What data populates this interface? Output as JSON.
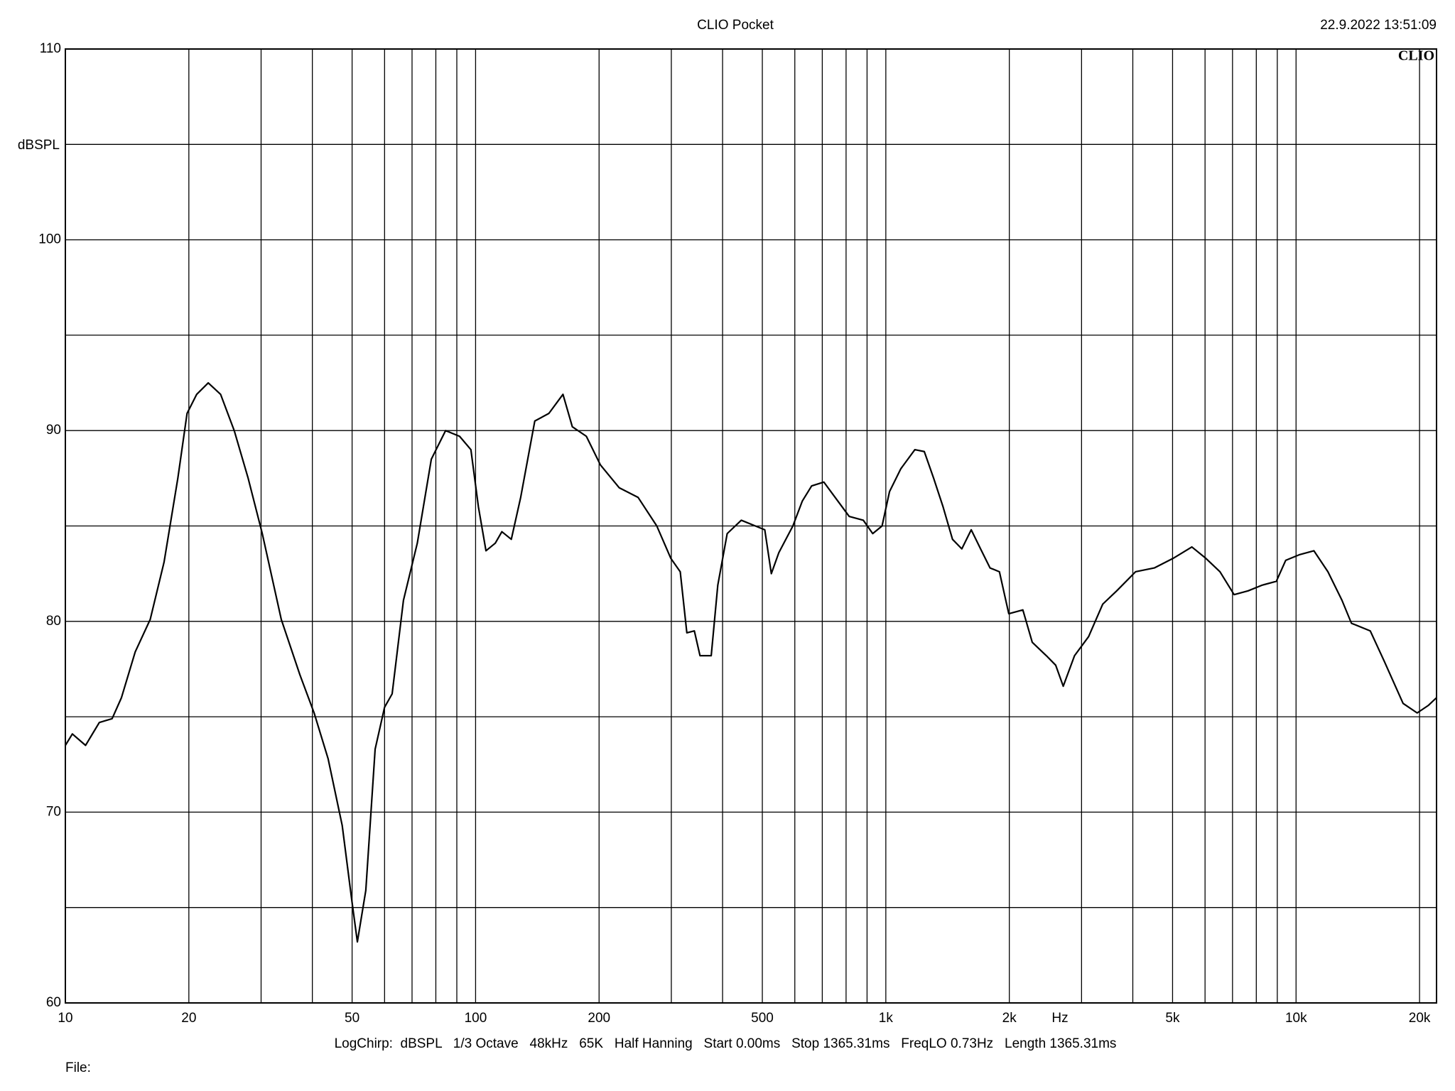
{
  "chart_data": {
    "type": "line",
    "title": "CLIO Pocket",
    "timestamp": "22.9.2022 13:51:09",
    "logo": "CLIO",
    "y_label": "dBSPL",
    "x_label": "Hz",
    "footer": "LogChirp:  dBSPL   1/3 Octave   48kHz   65K   Half Hanning   Start 0.00ms   Stop 1365.31ms   FreqLO 0.73Hz   Length 1365.31ms",
    "file_label": "File:",
    "x_scale": "log",
    "grid": true,
    "color": "#000000",
    "xlim": [
      10,
      22000
    ],
    "ylim": [
      60,
      110
    ],
    "xticks": [
      10,
      20,
      50,
      100,
      200,
      500,
      {
        "value": 1000,
        "label": "1k"
      },
      {
        "value": 2000,
        "label": "2k"
      },
      {
        "value": 5000,
        "label": "5k"
      },
      {
        "value": 10000,
        "label": "10k"
      },
      {
        "value": 20000,
        "label": "20k"
      }
    ],
    "xminor_ticks": [
      30,
      40,
      60,
      70,
      80,
      90,
      300,
      400,
      600,
      700,
      800,
      900,
      3000,
      4000,
      6000,
      7000,
      8000,
      9000
    ],
    "yticks": [
      60,
      70,
      80,
      90,
      100,
      110
    ],
    "yminor_ticks": [
      65,
      75,
      85,
      95,
      105
    ],
    "x": [
      10,
      10.4,
      11.2,
      12.1,
      13.0,
      13.7,
      14.8,
      16.1,
      17.4,
      18.8,
      19.8,
      20.9,
      22.3,
      23.9,
      25.8,
      27.9,
      30.2,
      33.6,
      37.3,
      40.4,
      43.7,
      47.3,
      49.9,
      51.5,
      54.0,
      56.9,
      60.0,
      62.6,
      66.7,
      72.1,
      78.0,
      84.5,
      91.4,
      97.4,
      101.6,
      106,
      111.7,
      115.9,
      122.2,
      128.8,
      139.4,
      150.9,
      163.3,
      172.1,
      186.2,
      201.5,
      224,
      248.9,
      276.5,
      299.2,
      315.4,
      327.3,
      341.4,
      352.4,
      375.3,
      389.4,
      410.5,
      444.3,
      480.8,
      506.9,
      525.9,
      548.5,
      593.5,
      625.6,
      659.5,
      706.3,
      752.2,
      814.2,
      881.3,
      929.1,
      979.1,
      1021,
      1088,
      1177,
      1241,
      1308,
      1379,
      1454,
      1532,
      1615,
      1702,
      1795,
      1892,
      1994,
      2158,
      2275,
      2462,
      2595,
      2707,
      2884,
      3121,
      3378,
      3655,
      4062,
      4513,
      5013,
      5572,
      6029,
      6524,
      7063,
      7643,
      8273,
      8952,
      9437,
      10212,
      11052,
      11960,
      12942,
      13646,
      15166,
      16413,
      18234,
      19735,
      21030,
      22000
    ],
    "values": [
      73.5,
      74.1,
      73.5,
      74.7,
      74.9,
      76.0,
      78.4,
      80.1,
      83.1,
      87.5,
      90.9,
      91.9,
      92.5,
      91.9,
      90.0,
      87.5,
      84.6,
      80.1,
      77.2,
      75.2,
      72.8,
      69.3,
      65.4,
      63.2,
      65.9,
      73.3,
      75.5,
      76.2,
      81.1,
      84.1,
      88.5,
      90.0,
      89.7,
      89.0,
      86.0,
      83.7,
      84.1,
      84.7,
      84.3,
      86.5,
      90.5,
      90.9,
      91.9,
      90.2,
      89.7,
      88.2,
      87.0,
      86.5,
      85.0,
      83.3,
      82.6,
      79.4,
      79.5,
      78.2,
      78.2,
      81.9,
      84.6,
      85.3,
      85.0,
      84.8,
      82.5,
      83.6,
      85.0,
      86.3,
      87.1,
      87.3,
      86.5,
      85.5,
      85.3,
      84.6,
      85.0,
      86.8,
      88.0,
      89.0,
      88.9,
      87.5,
      86.0,
      84.3,
      83.8,
      84.8,
      83.8,
      82.8,
      82.6,
      80.4,
      80.6,
      78.9,
      78.2,
      77.7,
      76.6,
      78.2,
      79.2,
      80.9,
      81.6,
      82.6,
      82.8,
      83.3,
      83.9,
      83.3,
      82.6,
      81.4,
      81.6,
      81.9,
      82.1,
      83.2,
      83.5,
      83.7,
      82.6,
      81.1,
      79.9,
      79.5,
      77.9,
      75.7,
      75.2,
      75.6,
      76.0
    ]
  }
}
